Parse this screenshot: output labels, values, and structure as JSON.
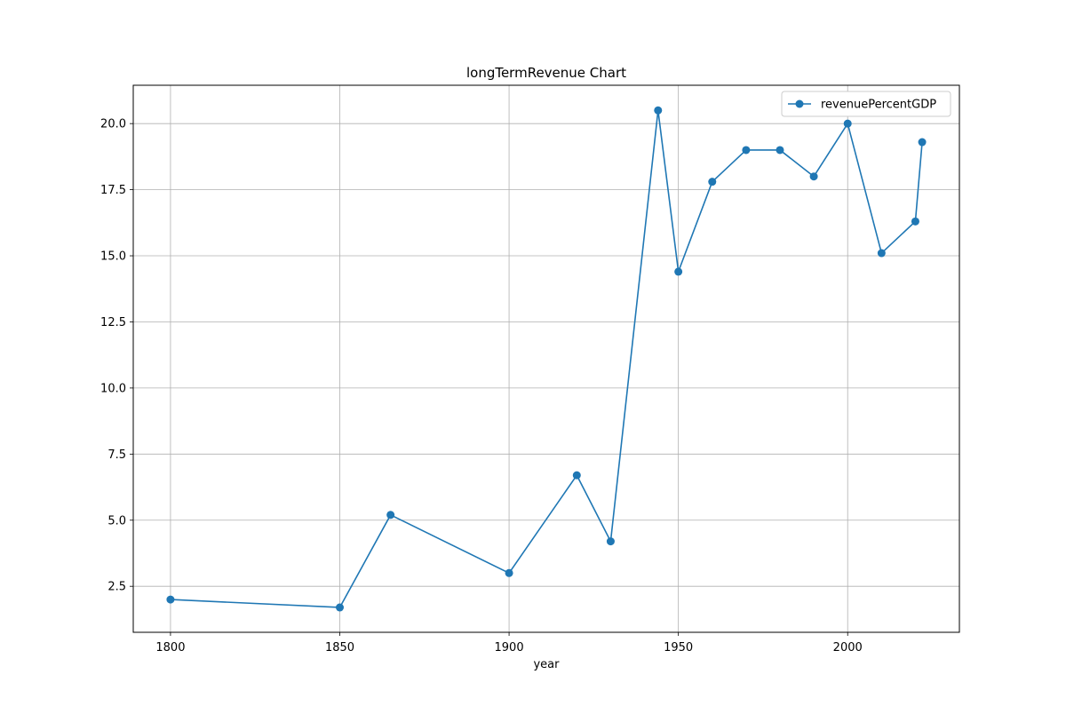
{
  "chart_data": {
    "type": "line",
    "title": "longTermRevenue Chart",
    "xlabel": "year",
    "ylabel": "",
    "x": [
      1800,
      1850,
      1865,
      1900,
      1920,
      1930,
      1944,
      1950,
      1960,
      1970,
      1980,
      1990,
      2000,
      2010,
      2020,
      2022
    ],
    "series": [
      {
        "name": "revenuePercentGDP",
        "values": [
          2.0,
          1.7,
          5.2,
          3.0,
          6.7,
          4.2,
          20.5,
          14.4,
          17.8,
          19.0,
          19.0,
          18.0,
          20.0,
          15.1,
          16.3,
          19.3
        ],
        "color": "#1f77b4",
        "marker": "circle"
      }
    ],
    "xlim": [
      1789,
      2033
    ],
    "ylim": [
      0.76,
      21.45
    ],
    "xticks": [
      1800,
      1850,
      1900,
      1950,
      2000
    ],
    "xtick_labels": [
      "1800",
      "1850",
      "1900",
      "1950",
      "2000"
    ],
    "yticks": [
      2.5,
      5.0,
      7.5,
      10.0,
      12.5,
      15.0,
      17.5,
      20.0
    ],
    "ytick_labels": [
      "2.5",
      "5.0",
      "7.5",
      "10.0",
      "12.5",
      "15.0",
      "17.5",
      "20.0"
    ],
    "grid": true,
    "legend_position": "top-right"
  }
}
